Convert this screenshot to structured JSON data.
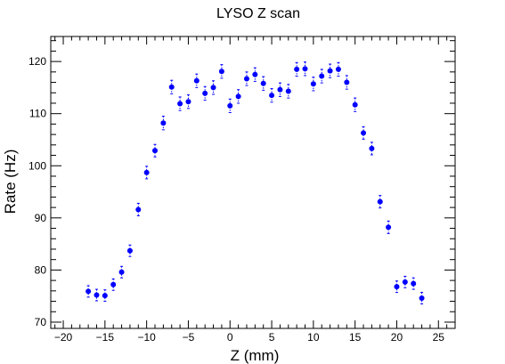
{
  "chart_data": {
    "type": "scatter",
    "title": "LYSO Z scan",
    "xlabel": "Z (mm)",
    "ylabel": "Rate (Hz)",
    "xlim": [
      -21.5,
      27
    ],
    "ylim": [
      68.8,
      124.8
    ],
    "xticks": [
      -20,
      -15,
      -10,
      -5,
      0,
      5,
      10,
      15,
      20,
      25
    ],
    "yticks": [
      70,
      80,
      90,
      100,
      110,
      120
    ],
    "xtick_labels": [
      "−20",
      "−15",
      "−10",
      "−5",
      "0",
      "5",
      "10",
      "15",
      "20",
      "25"
    ],
    "ytick_labels": [
      "70",
      "80",
      "90",
      "100",
      "110",
      "120"
    ],
    "x_minor_step": 1,
    "y_minor_step": 2,
    "grid": false,
    "legend": false,
    "marker_color": "#0000ff",
    "series": [
      {
        "x": [
          -17,
          -16,
          -15,
          -14,
          -13,
          -12,
          -11,
          -10,
          -9,
          -8,
          -7,
          -6,
          -5,
          -4,
          -3,
          -2,
          -1,
          0,
          1,
          2,
          3,
          4,
          5,
          6,
          7,
          8,
          9,
          10,
          11,
          12,
          13,
          14,
          15,
          16,
          17,
          18,
          19,
          20,
          21,
          22,
          23
        ],
        "y": [
          75.9,
          75.2,
          75.1,
          77.2,
          79.6,
          83.7,
          91.6,
          98.7,
          102.9,
          108.2,
          115.1,
          111.9,
          112.3,
          116.3,
          113.9,
          115.0,
          118.1,
          111.5,
          113.3,
          116.7,
          117.5,
          115.8,
          113.5,
          114.6,
          114.3,
          118.5,
          118.6,
          115.7,
          117.2,
          118.2,
          118.5,
          116.0,
          111.7,
          106.3,
          103.3,
          93.1,
          88.2,
          76.8,
          77.7,
          77.4,
          74.6
        ],
        "yerr": [
          1.1,
          1.1,
          1.1,
          1.1,
          1.1,
          1.1,
          1.2,
          1.2,
          1.2,
          1.3,
          1.3,
          1.3,
          1.3,
          1.3,
          1.3,
          1.3,
          1.3,
          1.3,
          1.3,
          1.3,
          1.3,
          1.3,
          1.3,
          1.3,
          1.3,
          1.3,
          1.3,
          1.3,
          1.3,
          1.3,
          1.3,
          1.3,
          1.3,
          1.2,
          1.2,
          1.2,
          1.2,
          1.1,
          1.1,
          1.1,
          1.1
        ]
      }
    ]
  }
}
